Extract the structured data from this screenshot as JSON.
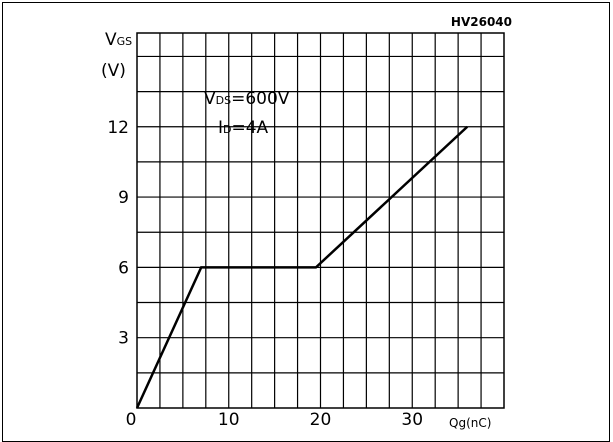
{
  "chart_data": {
    "type": "line",
    "figure_id": "HV26040",
    "ylabel": {
      "symbol": "V",
      "subscript": "GS",
      "unit": "(V)"
    },
    "xlabel": {
      "symbol": "Q",
      "subscript": "g",
      "unit": "(nC)"
    },
    "origin_label": "0",
    "xlim": [
      0,
      40
    ],
    "ylim": [
      0,
      16
    ],
    "x_ticks": [
      10,
      20,
      30
    ],
    "y_ticks": [
      3,
      6,
      9,
      12
    ],
    "grid": true,
    "annotations": [
      {
        "symbol": "V",
        "subscript": "DS",
        "value": "=600V"
      },
      {
        "symbol": "I",
        "subscript": "D",
        "value": "=4A"
      }
    ],
    "series": [
      {
        "x": [
          0,
          7,
          19.5,
          36
        ],
        "y": [
          0,
          6,
          6,
          12
        ]
      }
    ]
  }
}
